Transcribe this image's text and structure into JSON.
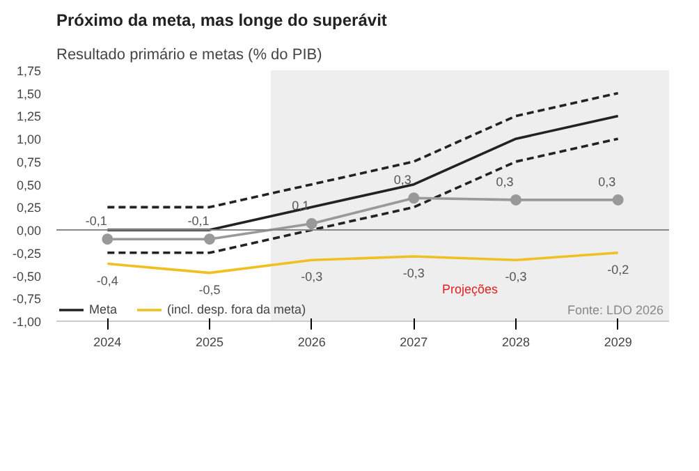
{
  "chart_data": {
    "type": "line",
    "title": "Próximo da meta, mas longe do superávit",
    "subtitle": "Resultado primário e metas (% do PIB)",
    "x": [
      2024,
      2025,
      2026,
      2027,
      2028,
      2029
    ],
    "xlim": [
      2023.5,
      2029.5
    ],
    "xticks": [
      2024,
      2025,
      2026,
      2027,
      2028,
      2029
    ],
    "ylim": [
      -1.0,
      1.75
    ],
    "yticks": [
      {
        "value": -1.0,
        "label": "-1,00"
      },
      {
        "value": -0.75,
        "label": "-0,75"
      },
      {
        "value": -0.5,
        "label": "-0,50"
      },
      {
        "value": -0.25,
        "label": "-0,25"
      },
      {
        "value": 0,
        "label": "0,00"
      },
      {
        "value": 0.25,
        "label": "0,25"
      },
      {
        "value": 0.5,
        "label": "0,50"
      },
      {
        "value": 0.75,
        "label": "0,75"
      },
      {
        "value": 1.0,
        "label": "1,00"
      },
      {
        "value": 1.25,
        "label": "1,25"
      },
      {
        "value": 1.5,
        "label": "1,50"
      },
      {
        "value": 1.75,
        "label": "1,75"
      }
    ],
    "series": [
      {
        "name": "Meta",
        "color": "#222222",
        "values": [
          0,
          0,
          0.25,
          0.5,
          1.0,
          1.25
        ]
      },
      {
        "color": "#222222",
        "line_style": "dashed",
        "values": [
          0.25,
          0.25,
          0.5,
          0.75,
          1.25,
          1.5
        ]
      },
      {
        "color": "#222222",
        "line_style": "dashed",
        "values": [
          -0.25,
          -0.25,
          0,
          0.25,
          0.75,
          1.0
        ]
      },
      {
        "name": "(incl. desp. fora da meta)",
        "color": "#f0c020",
        "values": [
          -0.37,
          -0.47,
          -0.33,
          -0.29,
          -0.33,
          -0.25
        ],
        "value_labels": [
          "-0,4",
          "-0,5",
          "-0,3",
          "-0,3",
          "-0,3",
          "-0,2"
        ]
      },
      {
        "color": "#999999",
        "marker": "circle",
        "values": [
          -0.1,
          -0.1,
          0.07,
          0.35,
          0.33,
          0.33
        ],
        "value_labels": [
          "-0,1",
          "-0,1",
          "0,1",
          "0,3",
          "0,3",
          "0,3"
        ]
      }
    ],
    "bands": [
      {
        "axis": "x",
        "from": 2025.6,
        "to": 2029.5,
        "label": "Projeções",
        "color": "#eeeeee"
      }
    ],
    "ref_lines": [
      {
        "axis": "y",
        "value": 0,
        "color": "#888888"
      }
    ],
    "grid": false,
    "legend": "bottom left",
    "line_style": "solid",
    "annotations": [
      "Fonte: LDO 2026"
    ]
  }
}
